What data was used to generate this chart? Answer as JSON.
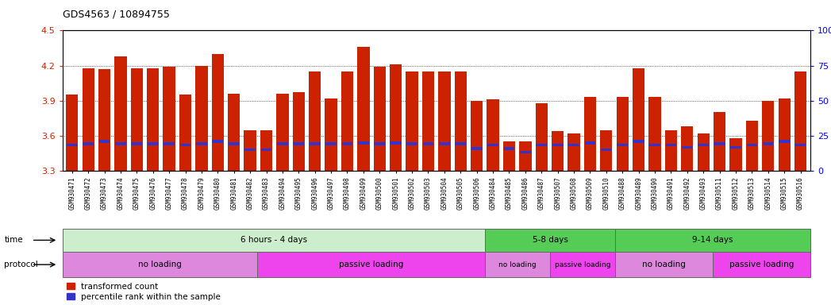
{
  "title": "GDS4563 / 10894755",
  "samples": [
    "GSM930471",
    "GSM930472",
    "GSM930473",
    "GSM930474",
    "GSM930475",
    "GSM930476",
    "GSM930477",
    "GSM930478",
    "GSM930479",
    "GSM930480",
    "GSM930481",
    "GSM930482",
    "GSM930483",
    "GSM930494",
    "GSM930495",
    "GSM930496",
    "GSM930497",
    "GSM930498",
    "GSM930499",
    "GSM930500",
    "GSM930501",
    "GSM930502",
    "GSM930503",
    "GSM930504",
    "GSM930505",
    "GSM930506",
    "GSM930484",
    "GSM930485",
    "GSM930486",
    "GSM930487",
    "GSM930507",
    "GSM930508",
    "GSM930509",
    "GSM930510",
    "GSM930488",
    "GSM930489",
    "GSM930490",
    "GSM930491",
    "GSM930492",
    "GSM930493",
    "GSM930511",
    "GSM930512",
    "GSM930513",
    "GSM930514",
    "GSM930515",
    "GSM930516"
  ],
  "red_values": [
    3.95,
    4.18,
    4.17,
    4.28,
    4.18,
    4.18,
    4.19,
    3.95,
    4.2,
    4.3,
    3.96,
    3.65,
    3.65,
    3.96,
    3.97,
    4.15,
    3.92,
    4.15,
    4.36,
    4.19,
    4.21,
    4.15,
    4.15,
    4.15,
    4.15,
    3.9,
    3.91,
    3.55,
    3.55,
    3.88,
    3.64,
    3.62,
    3.93,
    3.65,
    3.93,
    4.18,
    3.93,
    3.65,
    3.68,
    3.62,
    3.8,
    3.58,
    3.73,
    3.9,
    3.92,
    4.15
  ],
  "blue_values": [
    3.52,
    3.53,
    3.55,
    3.53,
    3.53,
    3.53,
    3.53,
    3.52,
    3.53,
    3.55,
    3.53,
    3.48,
    3.48,
    3.53,
    3.53,
    3.53,
    3.53,
    3.53,
    3.54,
    3.53,
    3.54,
    3.53,
    3.53,
    3.53,
    3.53,
    3.49,
    3.52,
    3.49,
    3.46,
    3.52,
    3.52,
    3.52,
    3.54,
    3.48,
    3.52,
    3.55,
    3.52,
    3.52,
    3.5,
    3.52,
    3.53,
    3.5,
    3.52,
    3.53,
    3.55,
    3.52
  ],
  "ymin": 3.3,
  "ymax": 4.5,
  "yticks": [
    3.3,
    3.6,
    3.9,
    4.2,
    4.5
  ],
  "right_yticks": [
    0,
    25,
    50,
    75,
    100
  ],
  "bar_color_red": "#cc2200",
  "bar_color_blue": "#3333cc",
  "grid_lines": [
    3.6,
    3.9,
    4.2
  ],
  "time_groups": [
    {
      "label": "6 hours - 4 days",
      "start": 0,
      "end": 25,
      "color": "#cceecc"
    },
    {
      "label": "5-8 days",
      "start": 26,
      "end": 33,
      "color": "#55cc55"
    },
    {
      "label": "9-14 days",
      "start": 34,
      "end": 45,
      "color": "#55cc55"
    }
  ],
  "protocol_groups": [
    {
      "label": "no loading",
      "start": 0,
      "end": 11,
      "color": "#dd88dd"
    },
    {
      "label": "passive loading",
      "start": 12,
      "end": 25,
      "color": "#ee44ee"
    },
    {
      "label": "no loading",
      "start": 26,
      "end": 29,
      "color": "#dd88dd"
    },
    {
      "label": "passive loading",
      "start": 30,
      "end": 33,
      "color": "#ee44ee"
    },
    {
      "label": "no loading",
      "start": 34,
      "end": 39,
      "color": "#dd88dd"
    },
    {
      "label": "passive loading",
      "start": 40,
      "end": 45,
      "color": "#ee44ee"
    }
  ],
  "legend_red": "transformed count",
  "legend_blue": "percentile rank within the sample"
}
